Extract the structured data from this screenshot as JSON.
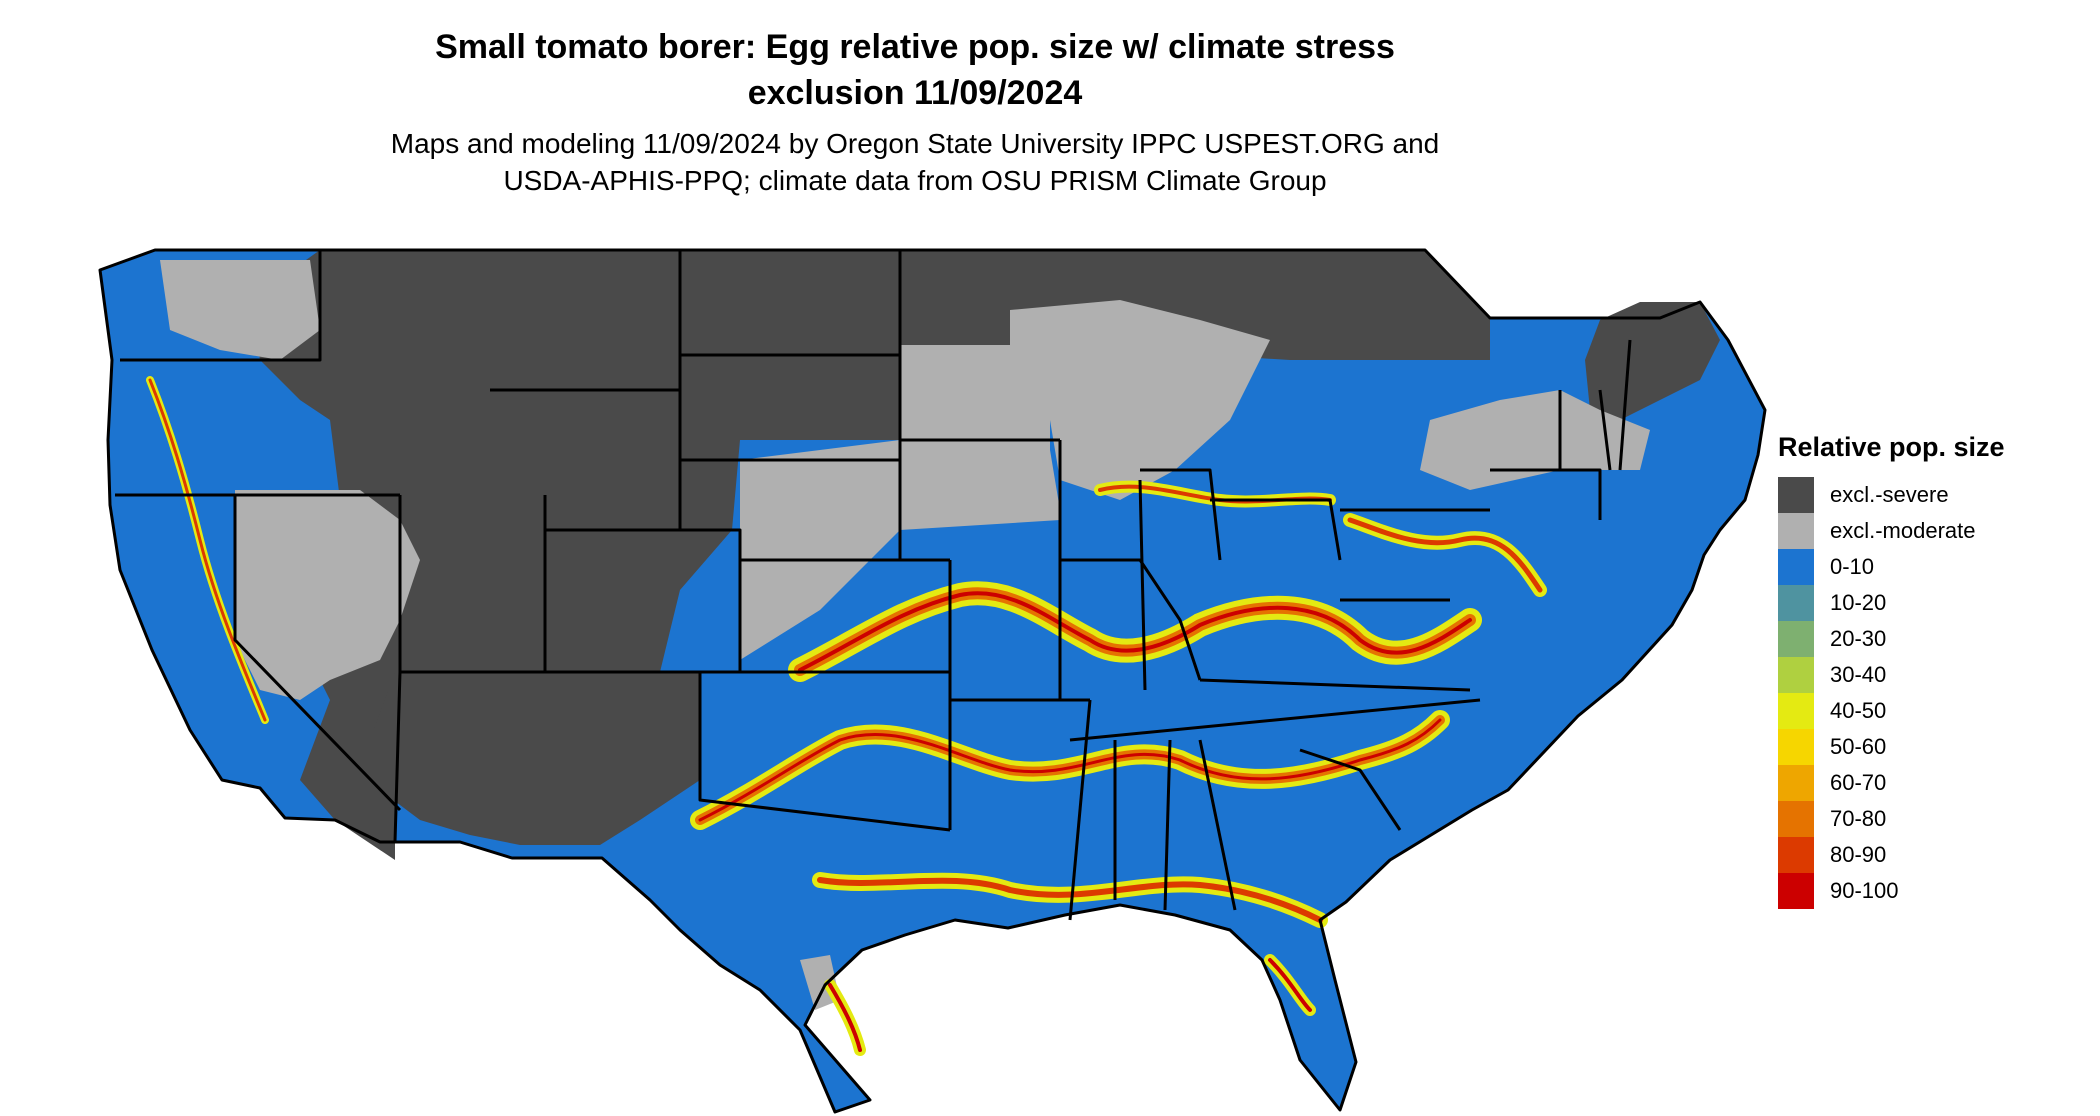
{
  "title_line1": "Small tomato borer: Egg relative pop. size w/ climate stress",
  "title_line2": "exclusion 11/09/2024",
  "subtitle_line1": "Maps and modeling 11/09/2024 by Oregon State University IPPC USPEST.ORG and",
  "subtitle_line2": "USDA-APHIS-PPQ; climate data from OSU PRISM Climate Group",
  "legend": {
    "title": "Relative pop. size",
    "items": [
      {
        "label": "excl.-severe",
        "color": "#4a4a4a"
      },
      {
        "label": "excl.-moderate",
        "color": "#b0b0b0"
      },
      {
        "label": "0-10",
        "color": "#1c74d0"
      },
      {
        "label": "10-20",
        "color": "#4f93a0"
      },
      {
        "label": "20-30",
        "color": "#7eb070"
      },
      {
        "label": "30-40",
        "color": "#afd040"
      },
      {
        "label": "40-50",
        "color": "#e4ea12"
      },
      {
        "label": "50-60",
        "color": "#f6d600"
      },
      {
        "label": "60-70",
        "color": "#eea600"
      },
      {
        "label": "70-80",
        "color": "#e57300"
      },
      {
        "label": "80-90",
        "color": "#dc3a00"
      },
      {
        "label": "90-100",
        "color": "#cc0000"
      }
    ]
  }
}
